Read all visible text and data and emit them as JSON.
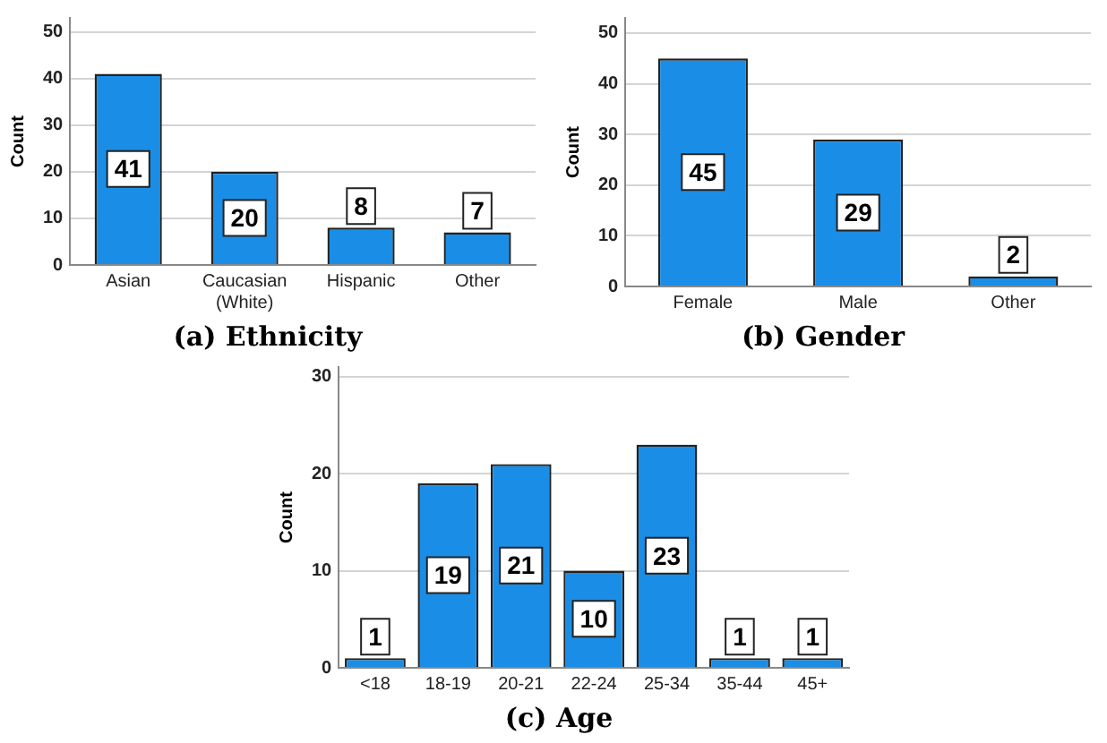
{
  "chart_data": [
    {
      "type": "bar",
      "title": "(a) Ethnicity",
      "ylabel": "Count",
      "categories": [
        "Asian",
        "Caucasian (White)",
        "Hispanic",
        "Other"
      ],
      "values": [
        41,
        20,
        8,
        7
      ],
      "color": "#1a8ee6",
      "ylim": [
        0,
        53
      ],
      "yticks": [
        0,
        10,
        20,
        30,
        40,
        50
      ],
      "grid": "y",
      "data_labels": true
    },
    {
      "type": "bar",
      "title": "(b) Gender",
      "ylabel": "Count",
      "categories": [
        "Female",
        "Male",
        "Other"
      ],
      "values": [
        45,
        29,
        2
      ],
      "color": "#1a8ee6",
      "ylim": [
        0,
        53
      ],
      "yticks": [
        0,
        10,
        20,
        30,
        40,
        50
      ],
      "grid": "y",
      "data_labels": true
    },
    {
      "type": "bar",
      "title": "(c) Age",
      "ylabel": "Count",
      "categories": [
        "<18",
        "18-19",
        "20-21",
        "22-24",
        "25-34",
        "35-44",
        "45+"
      ],
      "values": [
        1,
        19,
        21,
        10,
        23,
        1,
        1
      ],
      "color": "#1a8ee6",
      "ylim": [
        0,
        31
      ],
      "yticks": [
        0,
        10,
        20,
        30
      ],
      "grid": "y",
      "data_labels": true
    }
  ]
}
